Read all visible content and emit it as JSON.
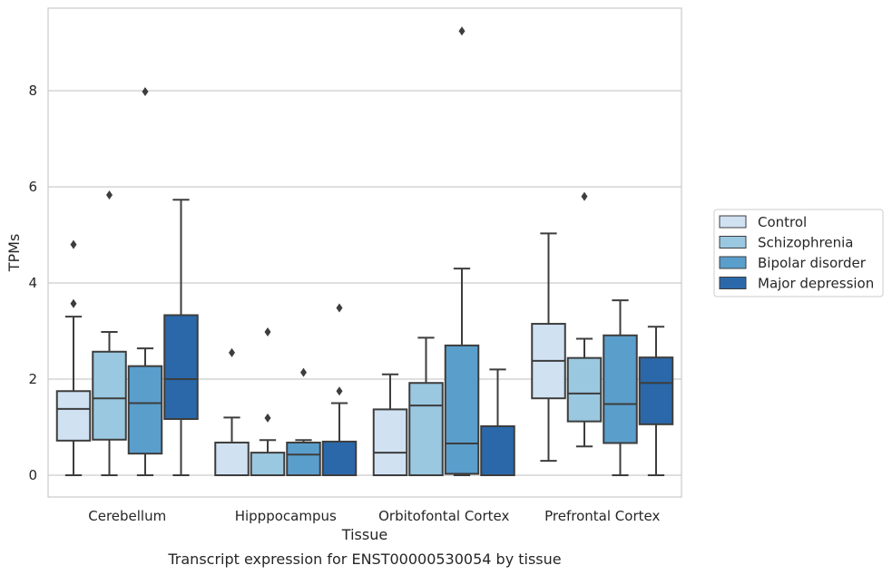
{
  "chart_data": {
    "type": "box",
    "caption": "Transcript expression for ENST00000530054 by tissue",
    "xlabel": "Tissue",
    "ylabel": "TPMs",
    "ylim": [
      -0.45,
      9.7
    ],
    "yticks": [
      0,
      2,
      4,
      6,
      8
    ],
    "grid": "horizontal",
    "legend_position": "right",
    "categories": [
      "Cerebellum",
      "Hipppocampus",
      "Orbitofontal Cortex",
      "Prefrontal Cortex"
    ],
    "series": [
      {
        "name": "Control",
        "color": "#d0e1f2",
        "boxes": [
          {
            "whislo": 0,
            "q1": 0.72,
            "med": 1.38,
            "q3": 1.75,
            "whishi": 3.3,
            "fliers": [
              3.57,
              4.8
            ]
          },
          {
            "whislo": 0,
            "q1": 0,
            "med": 0,
            "q3": 0.68,
            "whishi": 1.2,
            "fliers": [
              2.55
            ]
          },
          {
            "whislo": 0,
            "q1": 0,
            "med": 0.47,
            "q3": 1.37,
            "whishi": 2.1,
            "fliers": []
          },
          {
            "whislo": 0.3,
            "q1": 1.6,
            "med": 2.38,
            "q3": 3.15,
            "whishi": 5.03,
            "fliers": []
          }
        ]
      },
      {
        "name": "Schizophrenia",
        "color": "#9ac8e0",
        "boxes": [
          {
            "whislo": 0,
            "q1": 0.74,
            "med": 1.6,
            "q3": 2.57,
            "whishi": 2.98,
            "fliers": [
              5.83
            ]
          },
          {
            "whislo": 0,
            "q1": 0,
            "med": 0,
            "q3": 0.47,
            "whishi": 0.73,
            "fliers": [
              1.19,
              2.98
            ]
          },
          {
            "whislo": 0,
            "q1": 0,
            "med": 1.45,
            "q3": 1.92,
            "whishi": 2.86,
            "fliers": []
          },
          {
            "whislo": 0.6,
            "q1": 1.12,
            "med": 1.7,
            "q3": 2.44,
            "whishi": 2.84,
            "fliers": [
              5.8
            ]
          }
        ]
      },
      {
        "name": "Bipolar disorder",
        "color": "#5a9ecc",
        "boxes": [
          {
            "whislo": 0,
            "q1": 0.45,
            "med": 1.5,
            "q3": 2.27,
            "whishi": 2.64,
            "fliers": [
              7.98
            ]
          },
          {
            "whislo": 0,
            "q1": 0,
            "med": 0.43,
            "q3": 0.68,
            "whishi": 0.73,
            "fliers": [
              2.14
            ]
          },
          {
            "whislo": 0,
            "q1": 0.03,
            "med": 0.66,
            "q3": 2.7,
            "whishi": 4.3,
            "fliers": [
              9.24
            ]
          },
          {
            "whislo": 0,
            "q1": 0.67,
            "med": 1.48,
            "q3": 2.91,
            "whishi": 3.64,
            "fliers": []
          }
        ]
      },
      {
        "name": "Major depression",
        "color": "#2a68aa",
        "boxes": [
          {
            "whislo": 0,
            "q1": 1.17,
            "med": 2.0,
            "q3": 3.33,
            "whishi": 5.73,
            "fliers": []
          },
          {
            "whislo": 0,
            "q1": 0,
            "med": 0,
            "q3": 0.7,
            "whishi": 1.5,
            "fliers": [
              1.75,
              3.48
            ]
          },
          {
            "whislo": 0,
            "q1": 0,
            "med": 0,
            "q3": 1.02,
            "whishi": 2.2,
            "fliers": []
          },
          {
            "whislo": 0,
            "q1": 1.06,
            "med": 1.92,
            "q3": 2.45,
            "whishi": 3.09,
            "fliers": []
          }
        ]
      }
    ]
  }
}
